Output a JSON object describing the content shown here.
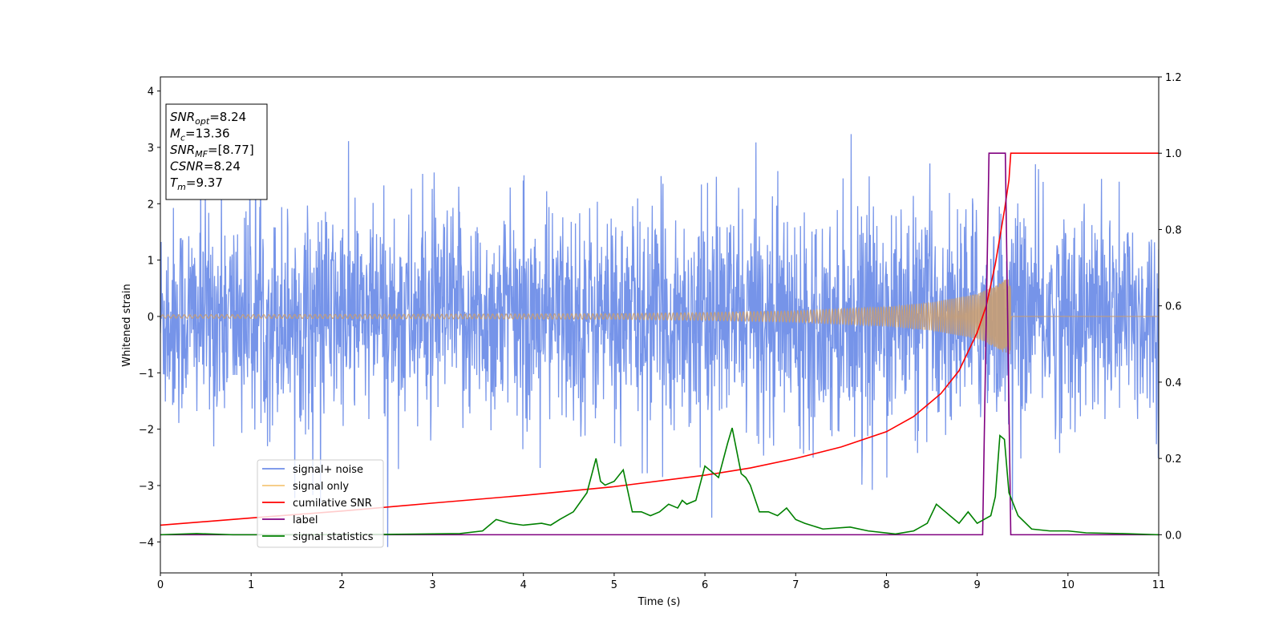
{
  "chart_data": {
    "type": "line",
    "xlabel": "Time (s)",
    "ylabel": "Whitened strain",
    "xlim": [
      0,
      11
    ],
    "ylim_left": [
      -4.55,
      4.25
    ],
    "ylim_right": [
      -0.1,
      1.2
    ],
    "x_ticks": [
      "0",
      "1",
      "2",
      "3",
      "4",
      "5",
      "6",
      "7",
      "8",
      "9",
      "10",
      "11"
    ],
    "y_left_ticks": [
      "−4",
      "−3",
      "−2",
      "−1",
      "0",
      "1",
      "2",
      "3",
      "4"
    ],
    "y_right_ticks": [
      "0.0",
      "0.2",
      "0.4",
      "0.6",
      "0.8",
      "1.0",
      "1.2"
    ],
    "annotation": {
      "lines": [
        {
          "sym": "SNR",
          "sub": "opt",
          "val": "=8.24"
        },
        {
          "sym": "M",
          "sub": "c",
          "val": "=13.36"
        },
        {
          "sym": "SNR",
          "sub": "MF",
          "val": "=[8.77]"
        },
        {
          "sym": "CSNR",
          "sub": "",
          "val": "=8.24"
        },
        {
          "sym": "T",
          "sub": "m",
          "val": "=9.37"
        }
      ]
    },
    "legend": {
      "position": "lower-left",
      "entries": [
        {
          "label": "signal+ noise",
          "color": "#6f8ee8"
        },
        {
          "label": "signal only",
          "color": "#f5c77a"
        },
        {
          "label": "cumilative SNR",
          "color": "#ff0000"
        },
        {
          "label": "label",
          "color": "#800080"
        },
        {
          "label": "signal statistics",
          "color": "#008000"
        }
      ]
    },
    "series": [
      {
        "name": "signal+ noise",
        "axis": "left",
        "color": "#6f8ee8",
        "kind": "noise",
        "sigma": 0.95,
        "x_range": [
          0,
          11
        ]
      },
      {
        "name": "signal only",
        "axis": "left",
        "color": "#c89d73",
        "kind": "chirp",
        "t_merge": 9.37,
        "amplitude_envelope": {
          "x": [
            0,
            3,
            5,
            6,
            7,
            8,
            8.5,
            9.0,
            9.2,
            9.3,
            9.37
          ],
          "y": [
            0.03,
            0.04,
            0.05,
            0.07,
            0.1,
            0.17,
            0.25,
            0.4,
            0.55,
            0.65,
            0.7
          ]
        }
      },
      {
        "name": "cumilative SNR",
        "axis": "right",
        "color": "#ff0000",
        "x": [
          0,
          1,
          2,
          3,
          4,
          5,
          6,
          6.5,
          7,
          7.5,
          8,
          8.3,
          8.6,
          8.8,
          9.0,
          9.1,
          9.2,
          9.25,
          9.3,
          9.35,
          9.37,
          9.4,
          11
        ],
        "y": [
          0.025,
          0.044,
          0.062,
          0.083,
          0.103,
          0.126,
          0.156,
          0.175,
          0.2,
          0.23,
          0.27,
          0.31,
          0.37,
          0.43,
          0.53,
          0.6,
          0.71,
          0.78,
          0.85,
          0.93,
          1.0,
          1.0,
          1.0
        ]
      },
      {
        "name": "label",
        "axis": "right",
        "color": "#800080",
        "x": [
          0,
          9.06,
          9.13,
          9.31,
          9.37,
          11
        ],
        "y": [
          0.0,
          0.0,
          1.0,
          1.0,
          0.0,
          0.0
        ]
      },
      {
        "name": "signal statistics",
        "axis": "right",
        "color": "#008000",
        "x": [
          0,
          0.4,
          0.8,
          1.5,
          2.5,
          3.3,
          3.55,
          3.7,
          3.85,
          4.0,
          4.2,
          4.3,
          4.4,
          4.55,
          4.7,
          4.8,
          4.85,
          4.9,
          5.0,
          5.1,
          5.2,
          5.3,
          5.4,
          5.5,
          5.6,
          5.7,
          5.75,
          5.8,
          5.9,
          6.0,
          6.05,
          6.15,
          6.25,
          6.3,
          6.4,
          6.45,
          6.5,
          6.6,
          6.7,
          6.8,
          6.9,
          7.0,
          7.1,
          7.3,
          7.6,
          7.8,
          8.1,
          8.3,
          8.45,
          8.55,
          8.65,
          8.7,
          8.8,
          8.9,
          9.0,
          9.15,
          9.2,
          9.25,
          9.3,
          9.35,
          9.45,
          9.6,
          9.8,
          10.0,
          10.2,
          10.6,
          11
        ],
        "y": [
          0.0,
          0.003,
          0.0,
          0.0,
          0.001,
          0.003,
          0.01,
          0.04,
          0.03,
          0.025,
          0.03,
          0.025,
          0.04,
          0.06,
          0.11,
          0.2,
          0.14,
          0.13,
          0.14,
          0.17,
          0.06,
          0.06,
          0.05,
          0.06,
          0.08,
          0.07,
          0.09,
          0.08,
          0.09,
          0.18,
          0.17,
          0.15,
          0.24,
          0.28,
          0.16,
          0.15,
          0.13,
          0.06,
          0.06,
          0.05,
          0.07,
          0.04,
          0.03,
          0.015,
          0.02,
          0.01,
          0.002,
          0.01,
          0.03,
          0.08,
          0.06,
          0.05,
          0.03,
          0.06,
          0.03,
          0.05,
          0.1,
          0.26,
          0.25,
          0.11,
          0.05,
          0.015,
          0.01,
          0.01,
          0.005,
          0.003,
          0.0
        ]
      }
    ]
  }
}
